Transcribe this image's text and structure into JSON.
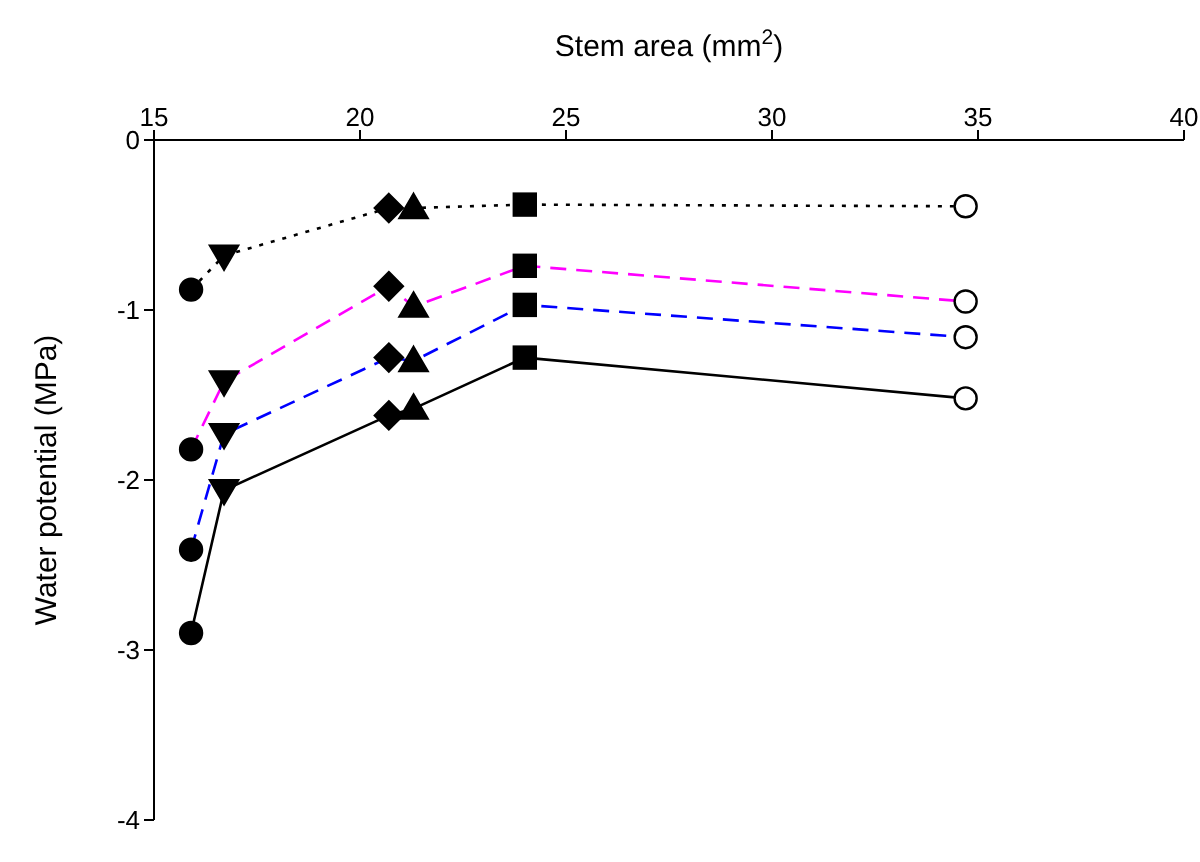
{
  "chart_data": {
    "type": "line",
    "xlabel": "Stem area (mm$^{2}$)",
    "ylabel": "Water potential (MPa)",
    "xlim": [
      15,
      40
    ],
    "xticks": [
      15,
      20,
      25,
      30,
      35,
      40
    ],
    "ylim": [
      -4,
      0
    ],
    "yticks": [
      0,
      -1,
      -2,
      -3,
      -4
    ],
    "grid": false,
    "series": [
      {
        "color": "#000000",
        "line_style": "dotted",
        "marker": "none",
        "x": [
          15.9,
          16.7,
          20.7,
          21.3,
          24.0,
          34.7
        ],
        "values": [
          -0.88,
          -0.68,
          -0.4,
          -0.4,
          -0.38,
          -0.39
        ]
      },
      {
        "color": "#ff00ff",
        "line_style": "dashed",
        "marker": "none",
        "x": [
          15.9,
          16.7,
          20.7,
          21.3,
          24.0,
          34.7
        ],
        "values": [
          -1.82,
          -1.42,
          -0.86,
          -0.98,
          -0.74,
          -0.95
        ]
      },
      {
        "color": "#0000ff",
        "line_style": "dashed",
        "marker": "none",
        "x": [
          15.9,
          16.7,
          20.7,
          21.3,
          24.0,
          34.7
        ],
        "values": [
          -2.41,
          -1.73,
          -1.28,
          -1.3,
          -0.97,
          -1.16
        ]
      },
      {
        "color": "#000000",
        "line_style": "solid",
        "marker": "none",
        "x": [
          15.9,
          16.7,
          20.7,
          21.3,
          24.0,
          34.7
        ],
        "values": [
          -2.9,
          -2.06,
          -1.62,
          -1.58,
          -1.28,
          -1.52
        ]
      },
      {
        "type": "scatter",
        "color": "#000000",
        "marker": "circle",
        "x": [
          15.9,
          15.9,
          15.9,
          15.9
        ],
        "values": [
          -0.88,
          -1.82,
          -2.41,
          -2.9
        ]
      },
      {
        "type": "scatter",
        "color": "#000000",
        "marker": "triangle-down",
        "x": [
          16.7,
          16.7,
          16.7,
          16.7
        ],
        "values": [
          -0.68,
          -1.42,
          -1.73,
          -2.06
        ]
      },
      {
        "type": "scatter",
        "color": "#000000",
        "marker": "diamond",
        "x": [
          20.7,
          20.7,
          20.7,
          20.7
        ],
        "values": [
          -0.4,
          -0.86,
          -1.28,
          -1.62
        ]
      },
      {
        "type": "scatter",
        "color": "#000000",
        "marker": "triangle",
        "x": [
          21.3,
          21.3,
          21.3,
          21.3
        ],
        "values": [
          -0.4,
          -0.98,
          -1.3,
          -1.58
        ]
      },
      {
        "type": "scatter",
        "color": "#000000",
        "marker": "square",
        "x": [
          24.0,
          24.0,
          24.0,
          24.0
        ],
        "values": [
          -0.38,
          -0.74,
          -0.97,
          -1.28
        ]
      },
      {
        "type": "scatter",
        "color": "#ffffff",
        "marker": "circle",
        "x": [
          34.7,
          34.7,
          34.7,
          34.7
        ],
        "values": [
          -0.39,
          -0.95,
          -1.16,
          -1.52
        ]
      }
    ]
  }
}
